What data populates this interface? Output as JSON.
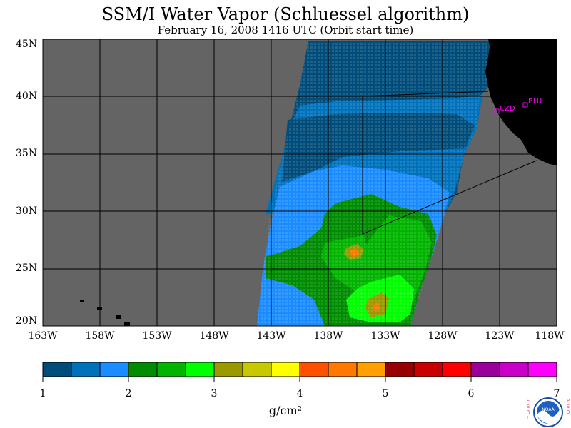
{
  "header": {
    "title": "SSM/I Water Vapor (Schluessel algorithm)",
    "subtitle": "February 16, 2008  1416 UTC  (Orbit start time)"
  },
  "map": {
    "lat_labels": [
      "45N",
      "40N",
      "35N",
      "30N",
      "25N",
      "20N"
    ],
    "lon_labels": [
      "163W",
      "158W",
      "153W",
      "148W",
      "143W",
      "138W",
      "133W",
      "128W",
      "123W",
      "118W"
    ],
    "stations": [
      {
        "label": "CZD"
      },
      {
        "label": "BLU"
      }
    ],
    "colors": {
      "no_data": "#646464",
      "land": "#000000",
      "grid": "#000000",
      "station": "#ff00ff"
    }
  },
  "colorbar": {
    "tick_labels": [
      "1",
      "2",
      "3",
      "4",
      "5",
      "6",
      "7"
    ],
    "units": "g/cm²",
    "min": 1,
    "max": 7,
    "step": 0.333,
    "colors": [
      "#004c7a",
      "#0072bb",
      "#1a8cff",
      "#008c00",
      "#00b400",
      "#00ff00",
      "#9a9a00",
      "#c8c800",
      "#ffff00",
      "#ff5000",
      "#ff7800",
      "#ffa000",
      "#960000",
      "#c80000",
      "#ff0000",
      "#9a009a",
      "#c800c8",
      "#ff00ff"
    ]
  },
  "logo": {
    "org_left": "ESRL",
    "org_right": "PSD",
    "emblem": "NOAA"
  }
}
